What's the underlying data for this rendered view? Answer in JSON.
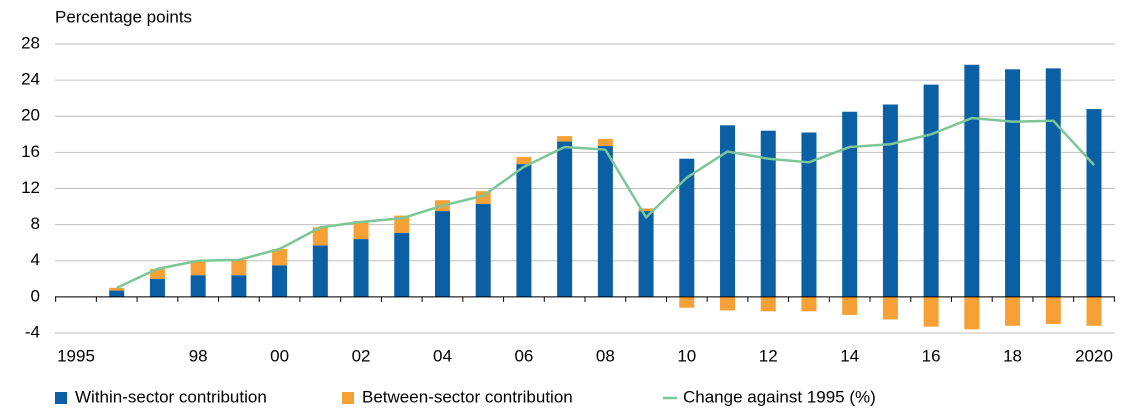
{
  "chart_data": {
    "type": "bar",
    "y_label": "Percentage points",
    "categories": [
      "1995",
      null,
      null,
      "98",
      null,
      "00",
      null,
      "02",
      null,
      "04",
      null,
      "06",
      null,
      "08",
      null,
      "10",
      null,
      "12",
      null,
      "14",
      null,
      "16",
      null,
      "18",
      null,
      "2020"
    ],
    "series": [
      {
        "name": "Within-sector contribution",
        "type": "bar",
        "color": "#0b5fa5",
        "values": [
          null,
          0.7,
          2.0,
          2.4,
          2.4,
          3.5,
          5.7,
          6.4,
          7.1,
          9.5,
          10.3,
          14.7,
          17.2,
          16.7,
          9.5,
          15.3,
          19.0,
          18.4,
          18.2,
          20.5,
          21.3,
          23.5,
          25.7,
          25.2,
          25.3,
          20.8
        ]
      },
      {
        "name": "Between-sector contribution",
        "type": "bar",
        "color": "#f7a035",
        "values": [
          null,
          0.3,
          1.1,
          1.6,
          1.7,
          1.8,
          2.0,
          2.0,
          1.9,
          1.2,
          1.4,
          0.8,
          0.6,
          0.8,
          0.3,
          -1.2,
          -1.5,
          -1.6,
          -1.6,
          -2.0,
          -2.5,
          -3.3,
          -3.6,
          -3.2,
          -3.0,
          -3.2
        ]
      },
      {
        "name": "Change against 1995 (%)",
        "type": "line",
        "color": "#7cc697",
        "values": [
          null,
          1.0,
          3.1,
          4.0,
          4.1,
          5.3,
          7.7,
          8.3,
          8.7,
          10.1,
          11.2,
          14.4,
          16.6,
          16.3,
          8.8,
          13.2,
          16.1,
          15.3,
          14.9,
          16.6,
          16.9,
          18.0,
          19.8,
          19.4,
          19.5,
          14.6
        ]
      }
    ],
    "ylim": [
      -4,
      28
    ],
    "yticks": [
      -4,
      0,
      4,
      8,
      12,
      16,
      20,
      24,
      28
    ],
    "grid": true,
    "legend": "bottom"
  }
}
